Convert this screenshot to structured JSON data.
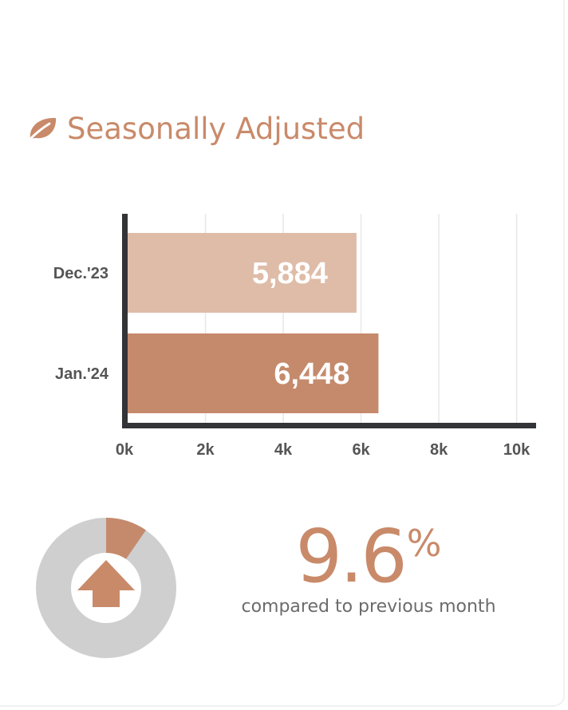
{
  "header": {
    "title": "Seasonally Adjusted",
    "icon": "leaf-icon"
  },
  "colors": {
    "accent": "#c98a6a",
    "bar_light": "#dfbca8",
    "bar_dark": "#c58a6c",
    "axis": "#333438",
    "grid": "#e8e8e8",
    "tick_text": "#555555",
    "donut_bg": "#cfcfcf",
    "donut_fill": "#c58a6c"
  },
  "chart_data": {
    "type": "bar",
    "orientation": "horizontal",
    "categories": [
      "Dec.'23",
      "Jan.'24"
    ],
    "values": [
      5884,
      6448
    ],
    "value_labels": [
      "5,884",
      "6,448"
    ],
    "xlim": [
      0,
      10500
    ],
    "xticks": [
      0,
      2000,
      4000,
      6000,
      8000,
      10000
    ],
    "xtick_labels": [
      "0k",
      "2k",
      "4k",
      "6k",
      "8k",
      "10k"
    ],
    "grid": true,
    "title": "Seasonally Adjusted"
  },
  "summary": {
    "change_value": "9.6",
    "change_unit": "%",
    "change_fraction": 0.096,
    "subtitle": "compared to previous month",
    "direction_icon": "arrow-up-icon"
  }
}
